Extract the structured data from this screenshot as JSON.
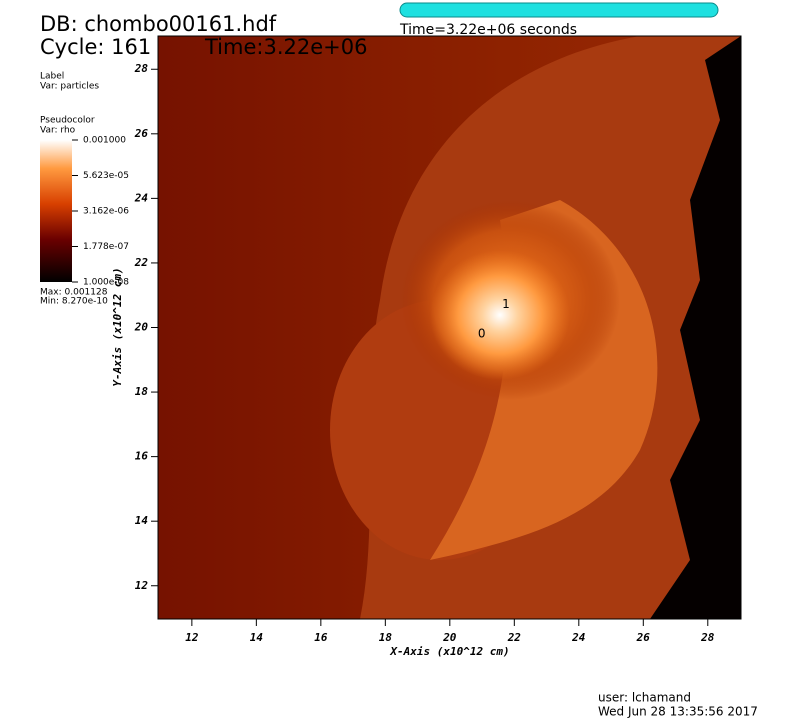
{
  "header": {
    "db": "DB: chombo00161.hdf",
    "cycle": "Cycle: 161",
    "time": "Time:3.22e+06"
  },
  "time_slider": {
    "label": "Time=3.22e+06 seconds"
  },
  "label_legend": {
    "title": "Label",
    "var": "Var: particles"
  },
  "pseudocolor_legend": {
    "title": "Pseudocolor",
    "var": "Var: rho",
    "scale": "log",
    "range": [
      1e-08,
      0.001
    ],
    "ticks": [
      {
        "value": 0.001,
        "label": "0.001000"
      },
      {
        "value": 5.623e-05,
        "label": "5.623e-05"
      },
      {
        "value": 3.162e-06,
        "label": "3.162e-06"
      },
      {
        "value": 1.778e-07,
        "label": "1.778e-07"
      },
      {
        "value": 1e-08,
        "label": "1.000e-08"
      }
    ],
    "max": "Max: 0.001128",
    "min": "Min: 8.270e-10"
  },
  "plot": {
    "xlabel": "X-Axis (x10^12 cm)",
    "ylabel": "Y-Axis (x10^12 cm)",
    "xlim": [
      10.95,
      29.03
    ],
    "ylim": [
      10.97,
      29.03
    ],
    "xticks": [
      12,
      14,
      16,
      18,
      20,
      22,
      24,
      26,
      28
    ],
    "yticks": [
      12,
      14,
      16,
      18,
      20,
      22,
      24,
      26,
      28
    ],
    "particles": [
      {
        "label": "0",
        "x": 20.99,
        "y": 19.8
      },
      {
        "label": "1",
        "x": 21.74,
        "y": 20.72
      }
    ]
  },
  "footer": {
    "user": "user: lchamand",
    "date": "Wed Jun 28 13:35:56 2017"
  }
}
